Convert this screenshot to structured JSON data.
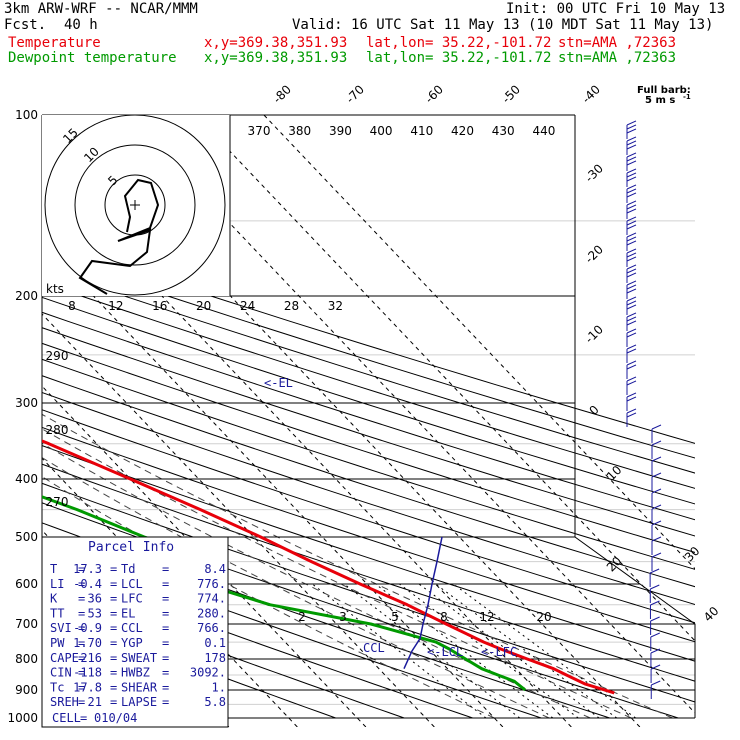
{
  "header": {
    "model": "3km ARW-WRF -- NCAR/MMM",
    "init": "Init: 00 UTC Fri 10 May 13",
    "fcst_label": "Fcst.",
    "fcst_value": "40 h",
    "valid": "Valid: 16 UTC Sat 11 May 13 (10 MDT Sat 11 May 13)",
    "temp_label": "Temperature",
    "dew_label": "Dewpoint temperature",
    "xy": "x,y=369.38,351.93",
    "latlon": "lat,lon= 35.22,-101.72",
    "stn": "stn=AMA ,72363"
  },
  "colors": {
    "temperature": "#e8000a",
    "dewpoint": "#009a00",
    "parcel": "#1a1a9c"
  },
  "barb_legend": {
    "line1": "Full barb:",
    "line2": "5 m s",
    "sup": "-1"
  },
  "hodograph": {
    "units": "kts",
    "ring_labels": [
      "5",
      "10",
      "15"
    ]
  },
  "parcel_info": {
    "title": "Parcel Info",
    "rows": [
      [
        "T",
        "17.3",
        "Td",
        "8.4"
      ],
      [
        "LI",
        "-0.4",
        "LCL",
        "776."
      ],
      [
        "K",
        "36",
        "LFC",
        "774."
      ],
      [
        "TT",
        "53",
        "EL",
        "280."
      ],
      [
        "SVI",
        "-0.9",
        "CCL",
        "766."
      ],
      [
        "PW",
        "1.70",
        "YGP",
        "0.1"
      ],
      [
        "CAPE",
        "216",
        "SWEAT",
        "178"
      ],
      [
        "CIN",
        "-118",
        "HWBZ",
        "3092."
      ],
      [
        "Tc",
        "17.8",
        "SHEAR",
        "1."
      ],
      [
        "SREH",
        "21",
        "LAPSE",
        "5.8"
      ]
    ],
    "cell_label": "CELL",
    "cell_value": "010/04"
  },
  "level_labels": {
    "el": "<-EL",
    "ccl": "CCL",
    "lcl": "<-LCL",
    "lfc": "<-LFC"
  },
  "chart_data": {
    "type": "line",
    "title": "",
    "xlabel": "",
    "ylabel": "",
    "pressure_ticks": [
      "100",
      "200",
      "300",
      "400",
      "500",
      "600",
      "700",
      "800",
      "900",
      "1000"
    ],
    "isotherm_labels": [
      "-80",
      "-70",
      "-60",
      "-50",
      "-40",
      "-30",
      "-20",
      "-10",
      "0",
      "10",
      "20",
      "30",
      "40"
    ],
    "theta_top_labels": [
      "370",
      "380",
      "390",
      "400",
      "410",
      "420",
      "430",
      "440"
    ],
    "theta_left_labels": [
      "290",
      "280",
      "270"
    ],
    "mixing_top_labels": [
      "8",
      "12",
      "16",
      "20",
      "24",
      "28",
      "32"
    ],
    "mixing_low_labels": [
      "2",
      "3",
      "5",
      "8",
      "12",
      "20"
    ],
    "series": [
      {
        "name": "Temperature",
        "pressure_hPa": [
          910,
          880,
          850,
          830,
          800,
          770,
          750,
          700,
          650,
          600,
          550,
          500,
          450,
          400,
          350,
          300,
          280,
          250,
          220,
          200,
          180,
          150,
          120,
          100
        ],
        "values_C": [
          21,
          18,
          16.5,
          15.5,
          13,
          10.5,
          9,
          6,
          3,
          -1,
          -5,
          -9,
          -14,
          -20,
          -27,
          -36,
          -40,
          -48,
          -54,
          -56,
          -52,
          -48,
          -45,
          -44
        ]
      },
      {
        "name": "Dewpoint temperature",
        "pressure_hPa": [
          900,
          870,
          850,
          830,
          800,
          770,
          750,
          700,
          650,
          600,
          580,
          550,
          530,
          500,
          450,
          400,
          350,
          300,
          250,
          200,
          150,
          100
        ],
        "values_C": [
          8.4,
          8.0,
          6.5,
          5,
          4,
          3,
          2,
          -5,
          -17,
          -24,
          -21,
          -24,
          -21,
          -26,
          -32,
          -40,
          -50,
          -56,
          -60,
          -69,
          -75,
          -78
        ]
      }
    ]
  }
}
